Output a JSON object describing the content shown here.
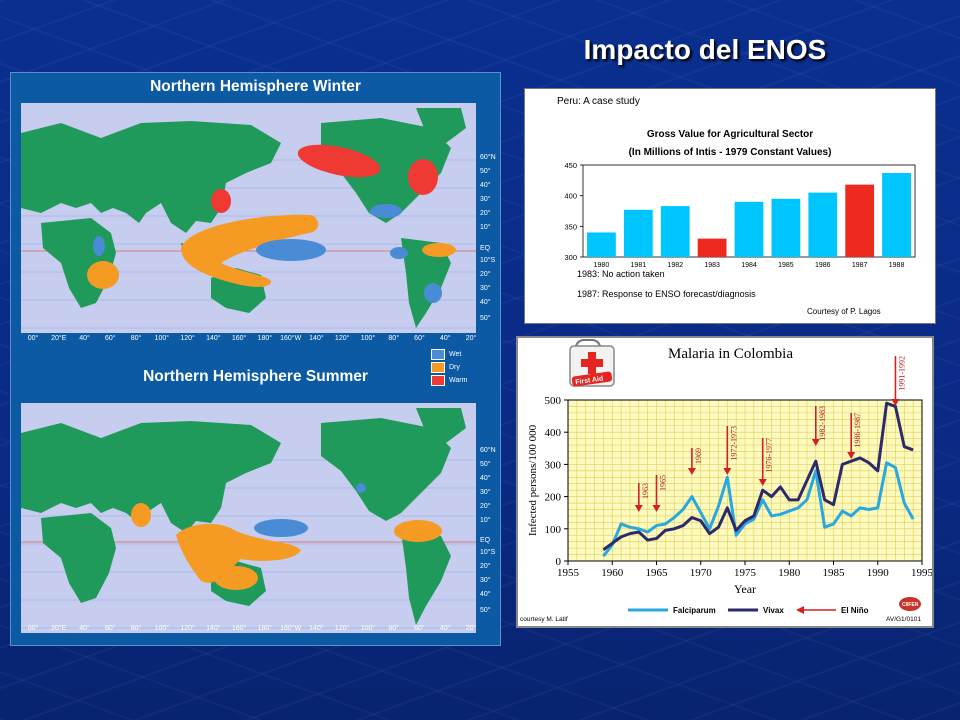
{
  "slide": {
    "title": "Impacto del ENOS"
  },
  "maps": {
    "winter_title": "Northern Hemisphere Winter",
    "summer_title": "Northern Hemisphere Summer",
    "lat_labels": [
      "60°N",
      "50°",
      "40°",
      "30°",
      "20°",
      "10°",
      "EQ",
      "10°S",
      "20°",
      "30°",
      "40°",
      "50°"
    ],
    "lon_labels": [
      "00°",
      "20°E",
      "40°",
      "60°",
      "80°",
      "100°",
      "120°",
      "140°",
      "160°",
      "180°",
      "160°W",
      "140°",
      "120°",
      "100°",
      "80°",
      "60°",
      "40°",
      "20°"
    ],
    "legend": [
      {
        "label": "Wet",
        "color": "#4a8bd6"
      },
      {
        "label": "Dry",
        "color": "#f59a23"
      },
      {
        "label": "Warm",
        "color": "#ee3a33"
      }
    ],
    "colors": {
      "ocean": "#c6cdef",
      "land": "#1f9a5a"
    }
  },
  "chart_data": [
    {
      "type": "bar",
      "heading": "Peru: A case study",
      "title": "Gross Value for Agricultural Sector",
      "subtitle": "(In Millions of Intis - 1979 Constant Values)",
      "categories": [
        "1980",
        "1981",
        "1982",
        "1983",
        "1984",
        "1985",
        "1986",
        "1987",
        "1988"
      ],
      "values": [
        340,
        377,
        383,
        330,
        390,
        395,
        405,
        418,
        437
      ],
      "highlight": [
        "1983",
        "1987"
      ],
      "colors": {
        "normal": "#00c6ff",
        "highlight": "#ee2a1f"
      },
      "ylim": [
        300,
        450
      ],
      "yticks": [
        "450",
        "400",
        "350",
        "300"
      ],
      "notes": [
        {
          "year": "1983",
          "text": "No action taken"
        },
        {
          "year": "1987",
          "text": "Response to ENSO forecast/diagnosis"
        }
      ],
      "credit": "Courtesy of P. Lagos"
    },
    {
      "type": "line",
      "title": "Malaria in Colombia",
      "xlabel": "Year",
      "ylabel": "Infected persons/100 000",
      "xlim": [
        1955,
        1995
      ],
      "ylim": [
        0,
        500
      ],
      "xticks": [
        "1955",
        "1960",
        "1965",
        "1970",
        "1975",
        "1980",
        "1985",
        "1990",
        "1995"
      ],
      "yticks": [
        "0",
        "100",
        "200",
        "300",
        "400",
        "500"
      ],
      "series": [
        {
          "name": "Falciparum",
          "color": "#29a8e0",
          "x": [
            1959,
            1960,
            1961,
            1962,
            1963,
            1964,
            1965,
            1966,
            1967,
            1968,
            1969,
            1970,
            1971,
            1972,
            1973,
            1974,
            1975,
            1976,
            1977,
            1978,
            1979,
            1980,
            1981,
            1982,
            1983,
            1984,
            1985,
            1986,
            1987,
            1988,
            1989,
            1990,
            1991,
            1992,
            1993,
            1994
          ],
          "y": [
            15,
            50,
            115,
            105,
            100,
            90,
            110,
            115,
            135,
            160,
            200,
            150,
            100,
            170,
            260,
            80,
            115,
            130,
            190,
            140,
            145,
            155,
            165,
            190,
            280,
            105,
            115,
            155,
            140,
            165,
            160,
            165,
            305,
            290,
            180,
            130
          ]
        },
        {
          "name": "Vivax",
          "color": "#2c2a6b",
          "x": [
            1959,
            1960,
            1961,
            1962,
            1963,
            1964,
            1965,
            1966,
            1967,
            1968,
            1969,
            1970,
            1971,
            1972,
            1973,
            1974,
            1975,
            1976,
            1977,
            1978,
            1979,
            1980,
            1981,
            1982,
            1983,
            1984,
            1985,
            1986,
            1987,
            1988,
            1989,
            1990,
            1991,
            1992,
            1993,
            1994
          ],
          "y": [
            35,
            55,
            75,
            85,
            90,
            65,
            70,
            95,
            100,
            110,
            135,
            125,
            85,
            105,
            165,
            95,
            125,
            140,
            220,
            200,
            230,
            190,
            190,
            250,
            310,
            190,
            175,
            300,
            310,
            320,
            305,
            280,
            490,
            480,
            355,
            345
          ]
        }
      ],
      "el_nino_events": [
        "1963",
        "1965",
        "1969",
        "1972-1973",
        "1976-1977",
        "1982-1983",
        "1986-1987",
        "1991-1992"
      ],
      "el_nino_years": [
        1963,
        1965,
        1969,
        1973,
        1977,
        1983,
        1987,
        1992
      ],
      "legend": {
        "falciparum": "Falciparum",
        "vivax": "Vivax",
        "el_nino": "El Niño"
      },
      "credit": "courtesy M. Latif",
      "code": "AV/G1/0101",
      "first_aid_label": "First Aid",
      "logo_text": "CIIFEN"
    }
  ]
}
